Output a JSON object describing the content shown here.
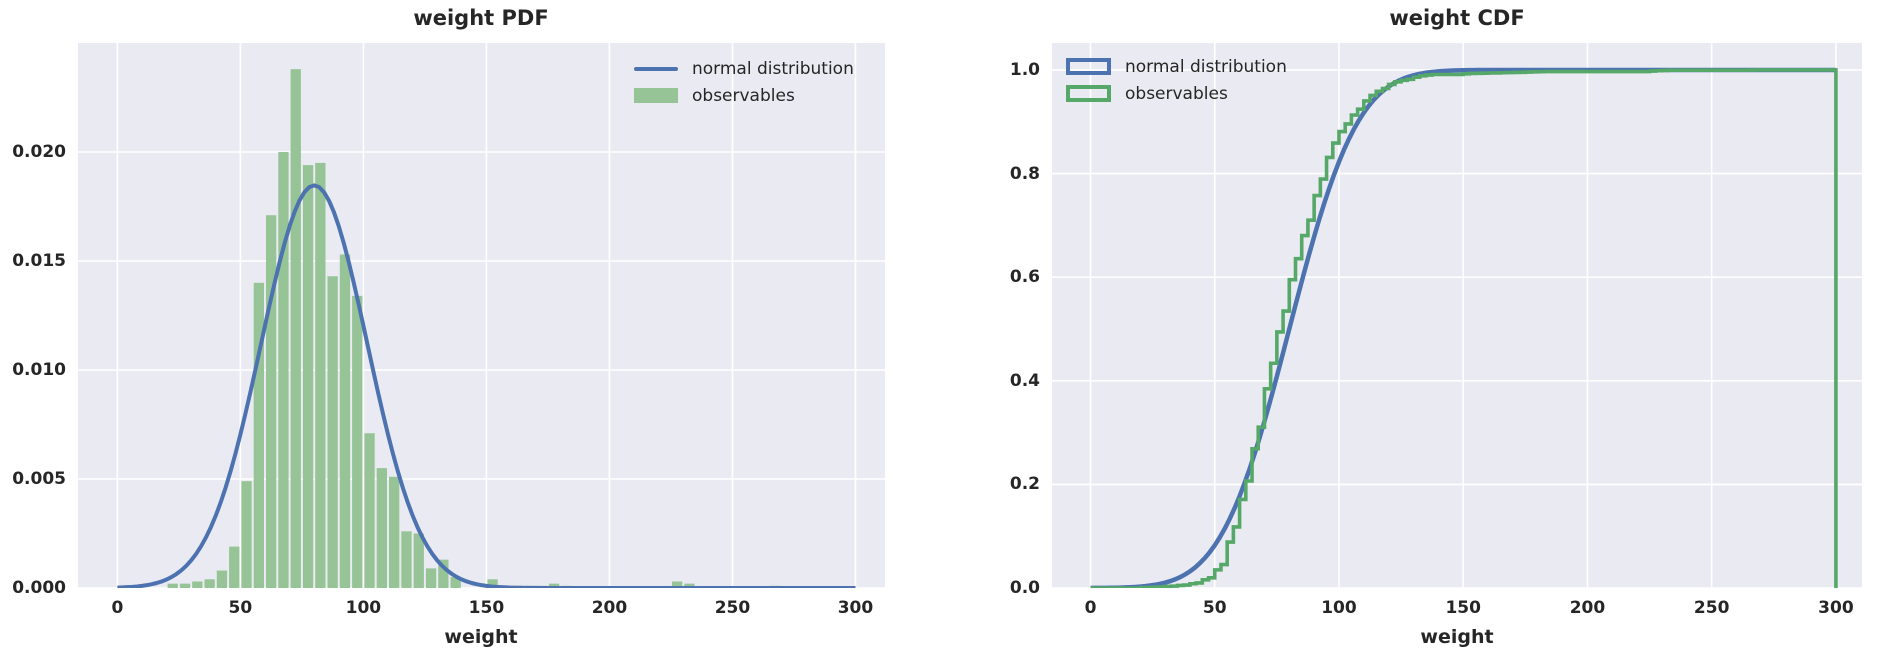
{
  "chart_data": [
    {
      "type": "bar",
      "title": "weight PDF",
      "xlabel": "weight",
      "ylabel": "",
      "xlim": [
        -16,
        312
      ],
      "ylim": [
        0,
        0.025
      ],
      "xticks": [
        0,
        50,
        100,
        150,
        200,
        250,
        300
      ],
      "xtick_labels": [
        "0",
        "50",
        "100",
        "150",
        "200",
        "250",
        "300"
      ],
      "yticks": [
        0,
        0.005,
        0.01,
        0.015,
        0.02
      ],
      "ytick_labels": [
        "0.000",
        "0.005",
        "0.010",
        "0.015",
        "0.020"
      ],
      "grid": true,
      "background": "#EAEAF2",
      "legend_position": "upper right",
      "series": [
        {
          "name": "normal distribution",
          "type": "line",
          "color": "#4C72B0",
          "distribution": "normal",
          "mean": 80,
          "std": 21.6,
          "peak_density": 0.0185,
          "x_range": [
            0,
            300
          ]
        },
        {
          "name": "observables",
          "type": "histogram",
          "color": "#97C497",
          "bin_start": 20,
          "bin_width": 5,
          "densities": [
            0.0002,
            0.0002,
            0.0003,
            0.0004,
            0.0008,
            0.0019,
            0.0049,
            0.014,
            0.0171,
            0.02,
            0.0238,
            0.0194,
            0.0195,
            0.0143,
            0.0153,
            0.0134,
            0.0071,
            0.0055,
            0.0051,
            0.0026,
            0.0025,
            0.0009,
            0.0013,
            0.0005,
            0.0,
            0.0,
            0.0004,
            0.0001,
            0.0001,
            0.0001,
            0.0001,
            0.0002,
            0.0001,
            0.0,
            0.0,
            0.0,
            0.0,
            0.0,
            0.0,
            0.0,
            0.0,
            0.0003,
            0.0002,
            0.0,
            0.0,
            0.0,
            0.0,
            0.0,
            0.0,
            0.0001
          ]
        }
      ]
    },
    {
      "type": "line",
      "title": "weight CDF",
      "xlabel": "weight",
      "ylabel": "",
      "xlim": [
        -15.5,
        310.5
      ],
      "ylim": [
        0,
        1.052
      ],
      "xticks": [
        0,
        50,
        100,
        150,
        200,
        250,
        300
      ],
      "xtick_labels": [
        "0",
        "50",
        "100",
        "150",
        "200",
        "250",
        "300"
      ],
      "yticks": [
        0,
        0.2,
        0.4,
        0.6,
        0.8,
        1.0
      ],
      "ytick_labels": [
        "0.0",
        "0.2",
        "0.4",
        "0.6",
        "0.8",
        "1.0"
      ],
      "grid": true,
      "background": "#EAEAF2",
      "legend_position": "upper left",
      "series": [
        {
          "name": "normal distribution",
          "type": "cdf_line",
          "color": "#4C72B0",
          "distribution": "normal",
          "mean": 80,
          "std": 21.6,
          "x_range": [
            0,
            300
          ]
        },
        {
          "name": "observables",
          "type": "cdf_step",
          "color": "#55A868",
          "source_histogram_chart": 0,
          "rises_from": 40,
          "reaches_one_at": 270,
          "closing_drop_x": 300
        }
      ]
    }
  ],
  "colors": {
    "blue": "#4C72B0",
    "green_line": "#55A868",
    "green_fill": "#97C497",
    "plot_background": "#EAEAF2",
    "grid": "#FFFFFF",
    "text": "#262626"
  }
}
